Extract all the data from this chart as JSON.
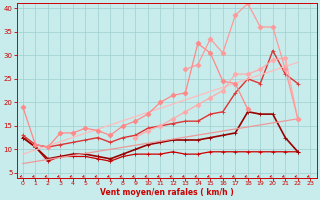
{
  "xlabel": "Vent moyen/en rafales ( km/h )",
  "xlim": [
    -0.5,
    23.5
  ],
  "ylim": [
    4,
    41
  ],
  "yticks": [
    5,
    10,
    15,
    20,
    25,
    30,
    35,
    40
  ],
  "xticks": [
    0,
    1,
    2,
    3,
    4,
    5,
    6,
    7,
    8,
    9,
    10,
    11,
    12,
    13,
    14,
    15,
    16,
    17,
    18,
    19,
    20,
    21,
    22,
    23
  ],
  "background_color": "#c8ecec",
  "grid_color": "#9ecece",
  "lines": [
    {
      "x": [
        0,
        1,
        2,
        3,
        4,
        5,
        6,
        7,
        8,
        9,
        10,
        11,
        12,
        13,
        14,
        15,
        16,
        17,
        18,
        19,
        20,
        21,
        22
      ],
      "y": [
        12.5,
        10.5,
        7.5,
        8.5,
        8.5,
        8.5,
        8.0,
        7.5,
        8.5,
        9.0,
        9.0,
        9.0,
        9.5,
        9.0,
        9.0,
        9.5,
        9.5,
        9.5,
        9.5,
        9.5,
        9.5,
        9.5,
        9.5
      ],
      "color": "#cc0000",
      "lw": 0.9,
      "marker": "+",
      "ms": 3
    },
    {
      "x": [
        0,
        1,
        2,
        3,
        4,
        5,
        6,
        7,
        8,
        9,
        10,
        11,
        12,
        13,
        14,
        15,
        16,
        17,
        18,
        19,
        20,
        21,
        22
      ],
      "y": [
        12.5,
        10.5,
        8.0,
        8.5,
        9.0,
        9.0,
        8.5,
        8.0,
        9.0,
        10.0,
        11.0,
        11.5,
        12.0,
        12.0,
        12.0,
        12.5,
        13.0,
        13.5,
        18.0,
        17.5,
        17.5,
        12.5,
        9.5
      ],
      "color": "#990000",
      "lw": 1.2,
      "marker": "+",
      "ms": 3
    },
    {
      "x": [
        0,
        1,
        2,
        3,
        4,
        5,
        6,
        7,
        8,
        9,
        10,
        11,
        12,
        13,
        14,
        15,
        16,
        17,
        18,
        19,
        20,
        21,
        22
      ],
      "y": [
        13.0,
        11.0,
        10.5,
        11.0,
        11.5,
        12.0,
        12.5,
        11.5,
        12.5,
        13.0,
        14.5,
        15.0,
        15.5,
        16.0,
        16.0,
        17.5,
        18.0,
        22.0,
        25.0,
        24.0,
        31.0,
        26.0,
        24.0
      ],
      "color": "#dd3333",
      "lw": 1.0,
      "marker": "+",
      "ms": 3
    },
    {
      "x": [
        0,
        22
      ],
      "y": [
        7.0,
        16.5
      ],
      "color": "#ee9999",
      "lw": 0.9,
      "marker": null,
      "ms": 0
    },
    {
      "x": [
        0,
        22
      ],
      "y": [
        9.0,
        28.5
      ],
      "color": "#ffbbbb",
      "lw": 0.9,
      "marker": null,
      "ms": 0
    },
    {
      "x": [
        0,
        1,
        2,
        3,
        4,
        5,
        6,
        7,
        8,
        9,
        10,
        11,
        12,
        13,
        14,
        15,
        16,
        17,
        18
      ],
      "y": [
        19.0,
        11.0,
        10.5,
        13.5,
        13.5,
        14.5,
        14.0,
        13.0,
        15.0,
        16.0,
        17.5,
        20.0,
        21.5,
        22.0,
        32.5,
        30.5,
        24.5,
        24.0,
        18.5
      ],
      "color": "#ff8888",
      "lw": 0.9,
      "marker": "D",
      "ms": 2.5
    },
    {
      "x": [
        9,
        10,
        11,
        12,
        13,
        14,
        15,
        16,
        17,
        18,
        19,
        20,
        21,
        22
      ],
      "y": [
        12.5,
        14.0,
        15.0,
        16.5,
        18.0,
        19.5,
        21.0,
        22.5,
        26.0,
        26.0,
        27.0,
        29.0,
        29.5,
        16.5
      ],
      "color": "#ffaaaa",
      "lw": 0.9,
      "marker": "D",
      "ms": 2.5
    },
    {
      "x": [
        13,
        14,
        15,
        16,
        17,
        18,
        19,
        20,
        21,
        22
      ],
      "y": [
        27.0,
        28.0,
        33.5,
        30.5,
        38.5,
        41.0,
        36.0,
        36.0,
        27.0,
        16.5
      ],
      "color": "#ff9999",
      "lw": 0.9,
      "marker": "D",
      "ms": 2.5
    }
  ],
  "arrow_color": "#cc0000"
}
